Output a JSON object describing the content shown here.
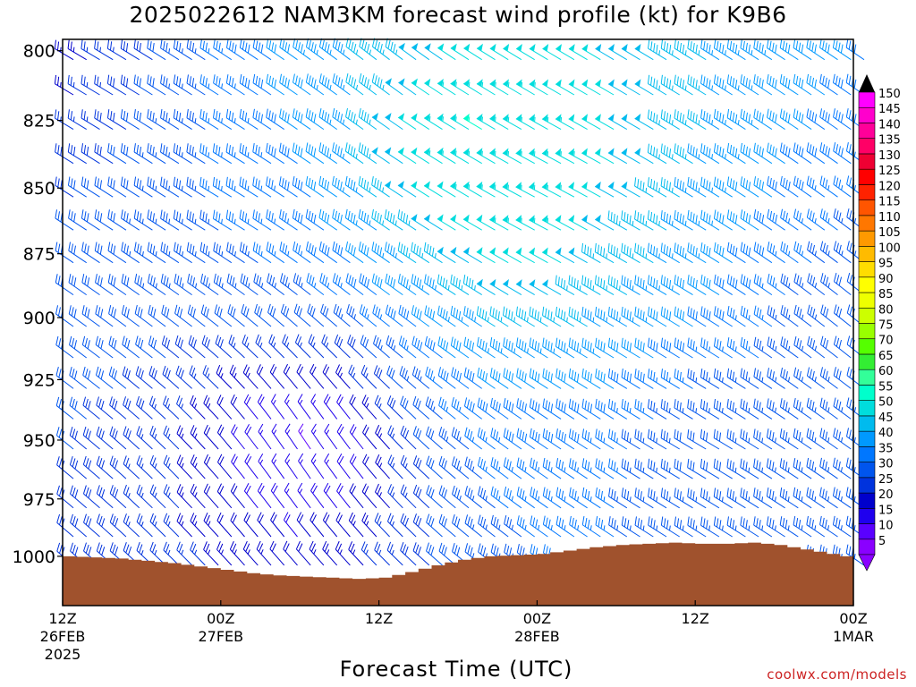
{
  "title": "2025022612 NAM3KM forecast wind profile (kt) for K9B6",
  "xlabel": "Forecast Time (UTC)",
  "credit": "coolwx.com/models",
  "chart_data": {
    "type": "wind_barbs",
    "units": "kt",
    "station": "K9B6",
    "model": "NAM3KM",
    "run": "2025022612",
    "xlabel": "Forecast Time (UTC)",
    "ylabel": "",
    "y_scale": "log-pressure",
    "ylim_hPa": [
      1022,
      796
    ],
    "y_ticks": [
      800,
      825,
      850,
      875,
      900,
      925,
      950,
      975,
      1000
    ],
    "xlim_hours": [
      0,
      60
    ],
    "x_ticks": [
      {
        "hour": 0,
        "label": "12Z",
        "sub1": "26FEB",
        "sub2": "2025"
      },
      {
        "hour": 12,
        "label": "00Z",
        "sub1": "27FEB",
        "sub2": ""
      },
      {
        "hour": 24,
        "label": "12Z",
        "sub1": "",
        "sub2": ""
      },
      {
        "hour": 36,
        "label": "00Z",
        "sub1": "28FEB",
        "sub2": ""
      },
      {
        "hour": 48,
        "label": "12Z",
        "sub1": "",
        "sub2": ""
      },
      {
        "hour": 60,
        "label": "00Z",
        "sub1": "1MAR",
        "sub2": ""
      }
    ],
    "colorbar": {
      "levels": [
        5,
        10,
        15,
        20,
        25,
        30,
        35,
        40,
        45,
        50,
        55,
        60,
        65,
        70,
        75,
        80,
        85,
        90,
        95,
        100,
        105,
        110,
        115,
        120,
        125,
        130,
        135,
        140,
        145,
        150
      ],
      "colors": [
        "#8a00ff",
        "#5a00ff",
        "#1f00ee",
        "#0000cc",
        "#0033dd",
        "#0055ee",
        "#0077ff",
        "#0099ff",
        "#00bbee",
        "#00dddd",
        "#00ffcc",
        "#33ff99",
        "#33ee33",
        "#55ff00",
        "#99ff00",
        "#ccff00",
        "#eeff00",
        "#ffff00",
        "#ffdd00",
        "#ffbb00",
        "#ff9900",
        "#ff7700",
        "#ff5500",
        "#ff2200",
        "#ff0000",
        "#ee0033",
        "#ff0066",
        "#ff0099",
        "#ff00cc",
        "#ff00ff"
      ]
    },
    "surface_pressure_hPa": [
      {
        "hour": 0,
        "p": 1000
      },
      {
        "hour": 2,
        "p": 1000.5
      },
      {
        "hour": 4,
        "p": 1001
      },
      {
        "hour": 6,
        "p": 1002
      },
      {
        "hour": 8,
        "p": 1003
      },
      {
        "hour": 10,
        "p": 1004.5
      },
      {
        "hour": 12,
        "p": 1006
      },
      {
        "hour": 14,
        "p": 1007.5
      },
      {
        "hour": 16,
        "p": 1008.5
      },
      {
        "hour": 18,
        "p": 1009
      },
      {
        "hour": 20,
        "p": 1009.5
      },
      {
        "hour": 22,
        "p": 1010
      },
      {
        "hour": 24,
        "p": 1009.5
      },
      {
        "hour": 26,
        "p": 1007
      },
      {
        "hour": 28,
        "p": 1004
      },
      {
        "hour": 30,
        "p": 1001.5
      },
      {
        "hour": 32,
        "p": 1000
      },
      {
        "hour": 34,
        "p": 999.5
      },
      {
        "hour": 36,
        "p": 999
      },
      {
        "hour": 38,
        "p": 997.5
      },
      {
        "hour": 40,
        "p": 996
      },
      {
        "hour": 42,
        "p": 995
      },
      {
        "hour": 44,
        "p": 994.5
      },
      {
        "hour": 46,
        "p": 994
      },
      {
        "hour": 48,
        "p": 994.5
      },
      {
        "hour": 50,
        "p": 994.5
      },
      {
        "hour": 52,
        "p": 994
      },
      {
        "hour": 54,
        "p": 995
      },
      {
        "hour": 56,
        "p": 997
      },
      {
        "hour": 58,
        "p": 999
      },
      {
        "hour": 60,
        "p": 1001
      }
    ],
    "wind_sample": [
      {
        "hour": 0,
        "p": 800,
        "speed": 22,
        "dir": 300
      },
      {
        "hour": 12,
        "p": 850,
        "speed": 35,
        "dir": 300
      },
      {
        "hour": 24,
        "p": 800,
        "speed": 45,
        "dir": 310
      },
      {
        "hour": 30,
        "p": 825,
        "speed": 60,
        "dir": 300
      },
      {
        "hour": 36,
        "p": 850,
        "speed": 60,
        "dir": 295
      },
      {
        "hour": 42,
        "p": 875,
        "speed": 45,
        "dir": 300
      },
      {
        "hour": 18,
        "p": 950,
        "speed": 10,
        "dir": 330
      },
      {
        "hour": 48,
        "p": 950,
        "speed": 30,
        "dir": 300
      },
      {
        "hour": 60,
        "p": 900,
        "speed": 30,
        "dir": 310
      }
    ]
  }
}
